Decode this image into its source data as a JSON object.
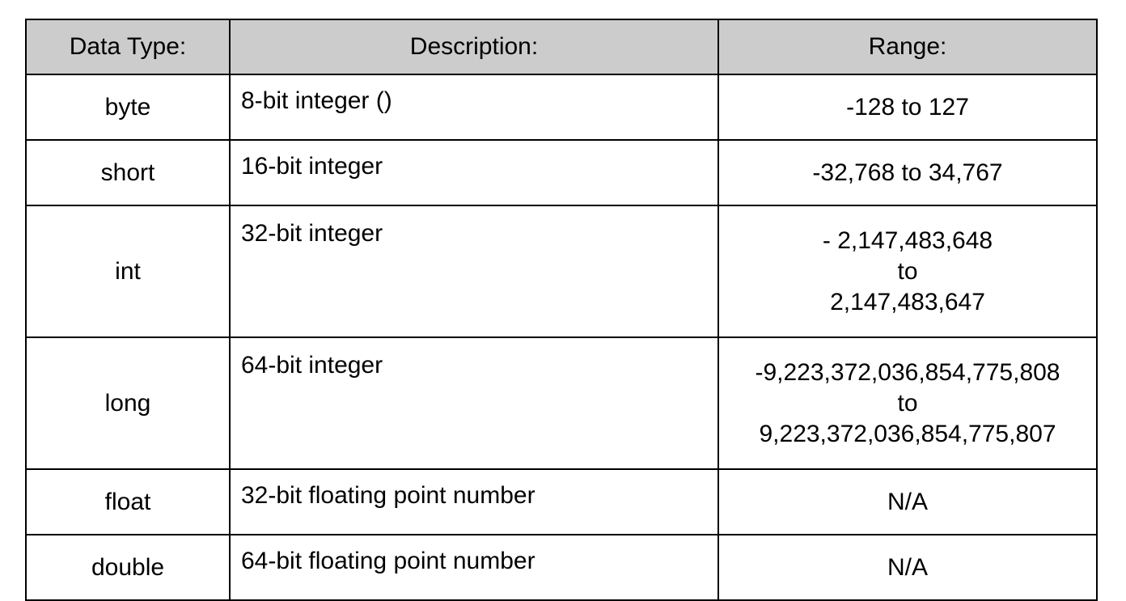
{
  "table": {
    "headers": {
      "type": "Data Type:",
      "description": "Description:",
      "range": "Range:"
    },
    "rows": [
      {
        "type": "byte",
        "description": "8-bit integer ()",
        "range": [
          "-128 to 127"
        ]
      },
      {
        "type": "short",
        "description": "16-bit integer",
        "range": [
          "-32,768 to 34,767"
        ]
      },
      {
        "type": "int",
        "description": "32-bit integer",
        "range": [
          "- 2,147,483,648",
          "to",
          "2,147,483,647"
        ]
      },
      {
        "type": "long",
        "description": "64-bit integer",
        "range": [
          "-9,223,372,036,854,775,808",
          "to",
          "9,223,372,036,854,775,807"
        ]
      },
      {
        "type": "float",
        "description": "32-bit floating point number",
        "range": [
          "N/A"
        ]
      },
      {
        "type": "double",
        "description": "64-bit floating point number",
        "range": [
          "N/A"
        ]
      }
    ]
  },
  "colors": {
    "header_background": "#cccccc",
    "border": "#000000",
    "text": "#000000"
  }
}
